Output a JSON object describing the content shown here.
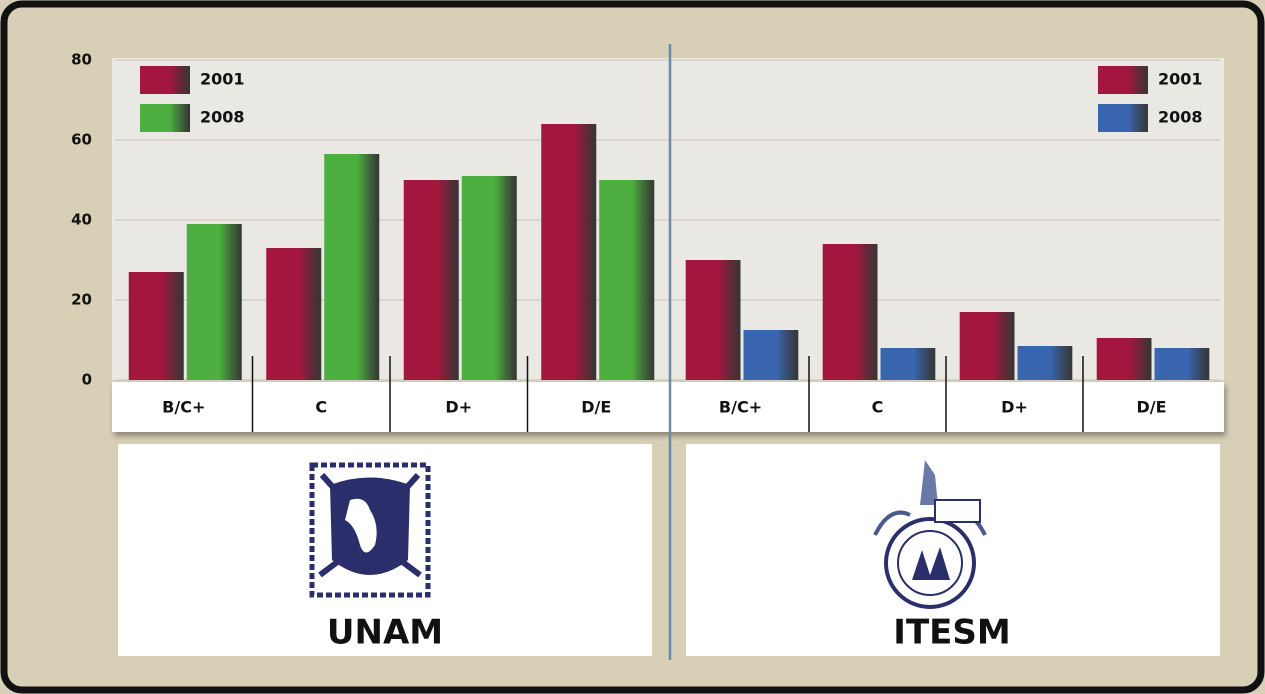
{
  "chart_data": [
    {
      "type": "bar",
      "title": "UNAM",
      "categories": [
        "B/C+",
        "C",
        "D+",
        "D/E"
      ],
      "series": [
        {
          "name": "2001",
          "color": "#a3173f",
          "values": [
            27,
            33,
            50,
            64
          ]
        },
        {
          "name": "2008",
          "color": "#4caf3f",
          "values": [
            39,
            56.5,
            51,
            50
          ]
        }
      ],
      "ylim": [
        0,
        80
      ],
      "yticks": [
        0,
        20,
        40,
        60,
        80
      ],
      "grid": true,
      "legend": "upper left"
    },
    {
      "type": "bar",
      "title": "ITESM",
      "categories": [
        "B/C+",
        "C",
        "D+",
        "D/E"
      ],
      "series": [
        {
          "name": "2001",
          "color": "#a3173f",
          "values": [
            30,
            34,
            17,
            10.5
          ]
        },
        {
          "name": "2008",
          "color": "#3a66b0",
          "values": [
            12.5,
            8,
            8.5,
            8
          ]
        }
      ],
      "ylim": [
        0,
        80
      ],
      "legend": "upper right"
    }
  ]
}
